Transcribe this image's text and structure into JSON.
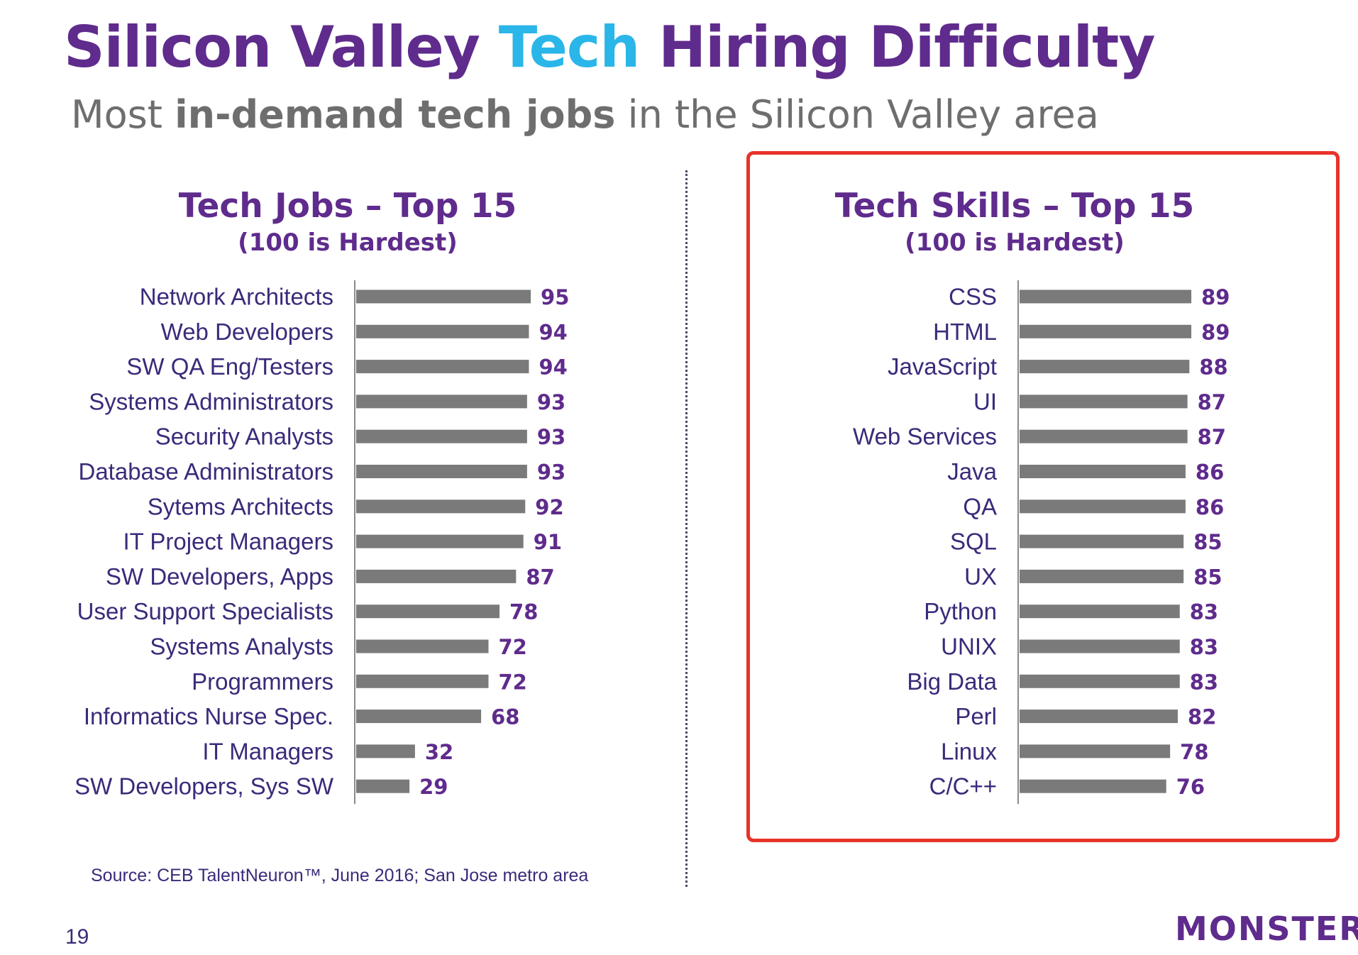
{
  "title": {
    "part1": "Silicon Valley ",
    "part2": "Tech",
    "part3": " Hiring Difficulty"
  },
  "subtitle": {
    "part1": "Most ",
    "part2": "in-demand tech jobs",
    "part3": " in the Silicon Valley area"
  },
  "colors": {
    "title": "#5f2b8c",
    "accent": "#2ab6e8",
    "bar": "#7a7a7a",
    "highlight_border": "#e8332a"
  },
  "chart_data": [
    {
      "type": "bar",
      "orientation": "horizontal",
      "title": "Tech Jobs – Top 15",
      "subtitle": "(100 is Hardest)",
      "categories": [
        "Network Architects",
        "Web Developers",
        "SW QA Eng/Testers",
        "Systems Administrators",
        "Security Analysts",
        "Database Administrators",
        "Sytems Architects",
        "IT Project Managers",
        "SW Developers, Apps",
        "User Support Specialists",
        "Systems Analysts",
        "Programmers",
        "Informatics Nurse Spec.",
        "IT Managers",
        "SW Developers, Sys SW"
      ],
      "values": [
        95,
        94,
        94,
        93,
        93,
        93,
        92,
        91,
        87,
        78,
        72,
        72,
        68,
        32,
        29
      ],
      "xlim": [
        0,
        100
      ],
      "grid": false,
      "legend": "none"
    },
    {
      "type": "bar",
      "orientation": "horizontal",
      "title": "Tech Skills – Top 15",
      "subtitle": "(100 is Hardest)",
      "categories": [
        "CSS",
        "HTML",
        "JavaScript",
        "UI",
        "Web Services",
        "Java",
        "QA",
        "SQL",
        "UX",
        "Python",
        "UNIX",
        "Big Data",
        "Perl",
        "Linux",
        "C/C++"
      ],
      "values": [
        89,
        89,
        88,
        87,
        87,
        86,
        86,
        85,
        85,
        83,
        83,
        83,
        82,
        78,
        76
      ],
      "xlim": [
        0,
        100
      ],
      "grid": false,
      "legend": "none",
      "highlighted": true
    }
  ],
  "source": "Source: CEB TalentNeuron™, June 2016; San Jose metro area",
  "page_number": "19",
  "logo_text": "MONSTER"
}
